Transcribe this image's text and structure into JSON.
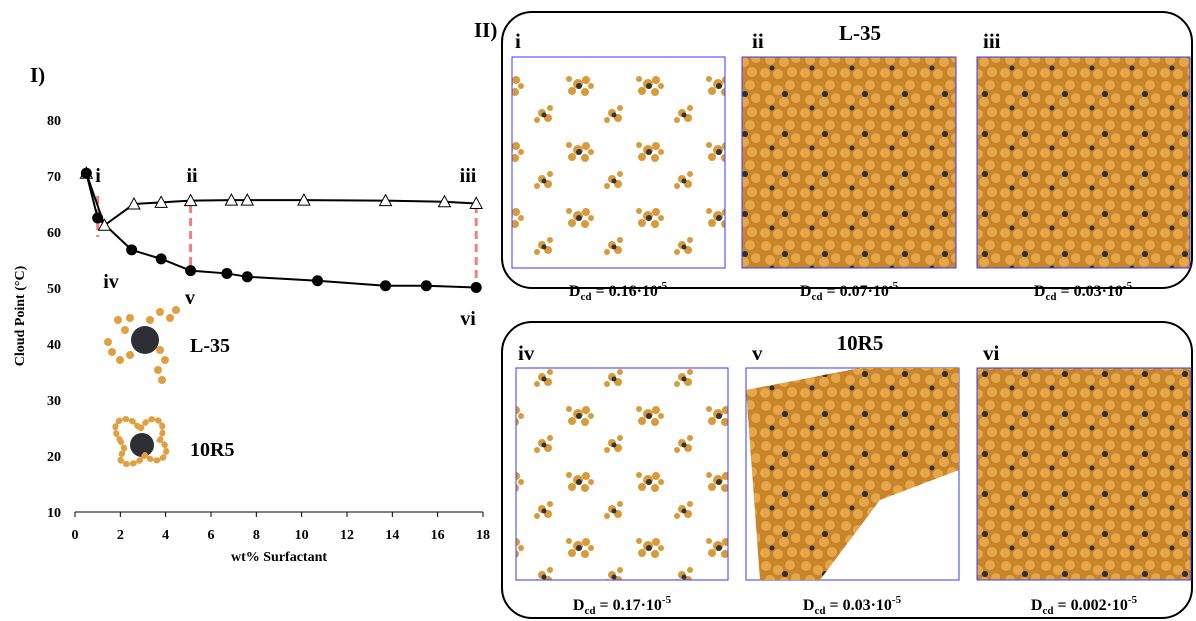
{
  "chart_data": {
    "type": "line",
    "panel_label": "I)",
    "xlabel": "wt% Surfactant",
    "ylabel": "Cloud Point (°C)",
    "xlim": [
      0,
      18
    ],
    "xticks": [
      0,
      2,
      4,
      6,
      8,
      10,
      12,
      14,
      16,
      18
    ],
    "ylim": [
      10,
      80
    ],
    "yticks": [
      10,
      20,
      30,
      40,
      50,
      60,
      70,
      80
    ],
    "series": [
      {
        "name": "L-35",
        "color": "#000000",
        "marker": "triangle",
        "x": [
          0.5,
          1.3,
          2.6,
          3.8,
          5.1,
          6.9,
          7.6,
          10.1,
          13.7,
          16.3,
          17.7
        ],
        "values": [
          70.5,
          61.2,
          65.0,
          65.3,
          65.6,
          65.7,
          65.7,
          65.7,
          65.6,
          65.4,
          65.1
        ]
      },
      {
        "name": "10R5",
        "color": "#000000",
        "marker": "circle",
        "x": [
          0.5,
          1.0,
          2.5,
          3.8,
          5.1,
          6.7,
          7.6,
          10.7,
          13.7,
          15.5,
          17.7
        ],
        "values": [
          70.5,
          62.5,
          56.8,
          55.2,
          53.1,
          52.6,
          52.0,
          51.3,
          50.4,
          50.4,
          50.1
        ]
      }
    ],
    "annotations": [
      "i",
      "ii",
      "iii",
      "iv",
      "v",
      "vi"
    ]
  },
  "panels": [
    {
      "label": "II)",
      "title": "L-35",
      "snapshots": [
        {
          "label": "i",
          "dcd": {
            "symbol": "D",
            "subscript": "cd",
            "text": " = 0.16·10",
            "exponent": "-5"
          }
        },
        {
          "label": "ii",
          "dcd": {
            "symbol": "D",
            "subscript": "cd",
            "text": " = 0.07·10",
            "exponent": "-5"
          }
        },
        {
          "label": "iii",
          "dcd": {
            "symbol": "D",
            "subscript": "cd",
            "text": " = 0.03·10",
            "exponent": "-5"
          }
        }
      ]
    },
    {
      "title": "10R5",
      "snapshots": [
        {
          "label": "iv",
          "dcd": {
            "symbol": "D",
            "subscript": "cd",
            "text": " = 0.17·10",
            "exponent": "-5"
          }
        },
        {
          "label": "v",
          "dcd": {
            "symbol": "D",
            "subscript": "cd",
            "text": " = 0.03·10",
            "exponent": "-5"
          }
        },
        {
          "label": "vi",
          "dcd": {
            "symbol": "D",
            "subscript": "cd",
            "text": " = 0.002·10",
            "exponent": "-5"
          }
        }
      ]
    }
  ]
}
